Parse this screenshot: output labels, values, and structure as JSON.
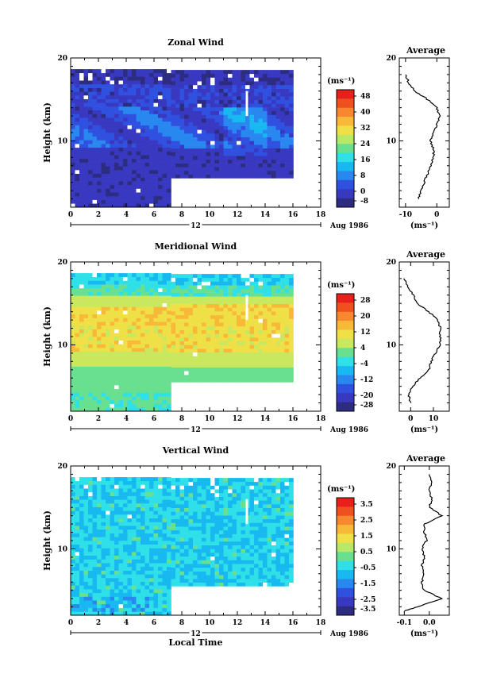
{
  "chart_data": [
    {
      "type": "heatmap",
      "title": "Zonal Wind",
      "ylabel": "Height (km)",
      "xlabel": "",
      "x_ticks": [
        "0",
        "2",
        "4",
        "6",
        "8",
        "10",
        "12",
        "14",
        "16",
        "18"
      ],
      "y_ticks": [
        "10",
        "20"
      ],
      "xlim": [
        0,
        18
      ],
      "ylim": [
        2,
        20
      ],
      "date_label": "12",
      "date_suffix": "Aug 1986",
      "colorbar": {
        "unit": "(ms⁻¹)",
        "ticks": [
          "48",
          "40",
          "32",
          "24",
          "16",
          "8",
          "0",
          "-8"
        ],
        "colors": [
          "#e8201b",
          "#f05020",
          "#f88830",
          "#f8b838",
          "#f0e048",
          "#b8e868",
          "#68e090",
          "#30e0e8",
          "#18b8f0",
          "#2888f0",
          "#3050e0",
          "#3838c0",
          "#2c2c80"
        ]
      },
      "data_coverage": {
        "hours": [
          0,
          16
        ],
        "height_full": [
          2,
          18.5
        ],
        "height_after_7h": [
          5.5,
          18.5
        ]
      },
      "profile": {
        "title": "Average",
        "xlim": [
          -12,
          4
        ],
        "x_ticks": [
          "-10",
          "0"
        ],
        "unit": "(ms⁻¹)",
        "heights": [
          3,
          4,
          5,
          6,
          7,
          8,
          9,
          10,
          11,
          12,
          13,
          14,
          15,
          16,
          17,
          18
        ],
        "values": [
          -6,
          -5,
          -4,
          -3,
          -2,
          -1,
          -1,
          -2,
          -1,
          0,
          1,
          0,
          -3,
          -7,
          -9,
          -10
        ]
      }
    },
    {
      "type": "heatmap",
      "title": "Meridional Wind",
      "ylabel": "Height (km)",
      "xlabel": "",
      "x_ticks": [
        "0",
        "2",
        "4",
        "6",
        "8",
        "10",
        "12",
        "14",
        "16",
        "18"
      ],
      "y_ticks": [
        "10",
        "20"
      ],
      "xlim": [
        0,
        18
      ],
      "ylim": [
        2,
        20
      ],
      "date_label": "12",
      "date_suffix": "Aug 1986",
      "colorbar": {
        "unit": "(ms⁻¹)",
        "ticks": [
          "28",
          "20",
          "12",
          "4",
          "-4",
          "-12",
          "-20",
          "-28"
        ],
        "colors": [
          "#e8201b",
          "#f05020",
          "#f88830",
          "#f8b838",
          "#f0e048",
          "#c8e860",
          "#68e090",
          "#30e0e8",
          "#18b8f0",
          "#2888f0",
          "#3050e0",
          "#3838c0",
          "#2c2c80"
        ]
      },
      "data_coverage": {
        "hours": [
          0,
          16
        ],
        "height_full": [
          2,
          18.5
        ],
        "height_after_7h": [
          5.5,
          18.5
        ]
      },
      "profile": {
        "title": "Average",
        "xlim": [
          -5,
          17
        ],
        "x_ticks": [
          "0",
          "10"
        ],
        "unit": "(ms⁻¹)",
        "heights": [
          3,
          4,
          5,
          6,
          7,
          8,
          9,
          10,
          11,
          12,
          13,
          14,
          15,
          16,
          17,
          18
        ],
        "values": [
          0,
          -1,
          1,
          4,
          8,
          9,
          11,
          13,
          13,
          13,
          12,
          8,
          3,
          1,
          -1,
          -3
        ]
      }
    },
    {
      "type": "heatmap",
      "title": "Vertical Wind",
      "ylabel": "Height (km)",
      "xlabel": "Local Time",
      "x_ticks": [
        "0",
        "2",
        "4",
        "6",
        "8",
        "10",
        "12",
        "14",
        "16",
        "18"
      ],
      "y_ticks": [
        "10",
        "20"
      ],
      "xlim": [
        0,
        18
      ],
      "ylim": [
        2,
        20
      ],
      "date_label": "12",
      "date_suffix": "Aug 1986",
      "colorbar": {
        "unit": "(ms⁻¹)",
        "ticks": [
          "3.5",
          "2.5",
          "1.5",
          "0.5",
          "-0.5",
          "-1.5",
          "-2.5",
          "-3.5"
        ],
        "colors": [
          "#e8201b",
          "#f05020",
          "#f88830",
          "#f8b838",
          "#f0e048",
          "#b8e868",
          "#68e090",
          "#30e0e8",
          "#18b8f0",
          "#2888f0",
          "#3050e0",
          "#3838c0",
          "#2c2c80"
        ]
      },
      "data_coverage": {
        "hours": [
          0,
          16
        ],
        "height_full": [
          2,
          18.5
        ],
        "height_after_7h": [
          5.5,
          18.5
        ]
      },
      "profile": {
        "title": "Average",
        "xlim": [
          -0.12,
          0.08
        ],
        "x_ticks": [
          "-0.1",
          "0.0"
        ],
        "unit": "(ms⁻¹)",
        "heights": [
          2.5,
          3,
          4,
          5,
          6,
          7,
          8,
          9,
          10,
          11,
          12,
          13,
          14,
          15,
          16,
          17,
          18,
          19
        ],
        "values": [
          -0.1,
          -0.05,
          0.05,
          -0.02,
          -0.03,
          -0.02,
          -0.03,
          -0.02,
          -0.03,
          -0.01,
          -0.02,
          -0.02,
          0.05,
          0.0,
          0.01,
          0.0,
          0.01,
          0.0
        ]
      }
    }
  ]
}
